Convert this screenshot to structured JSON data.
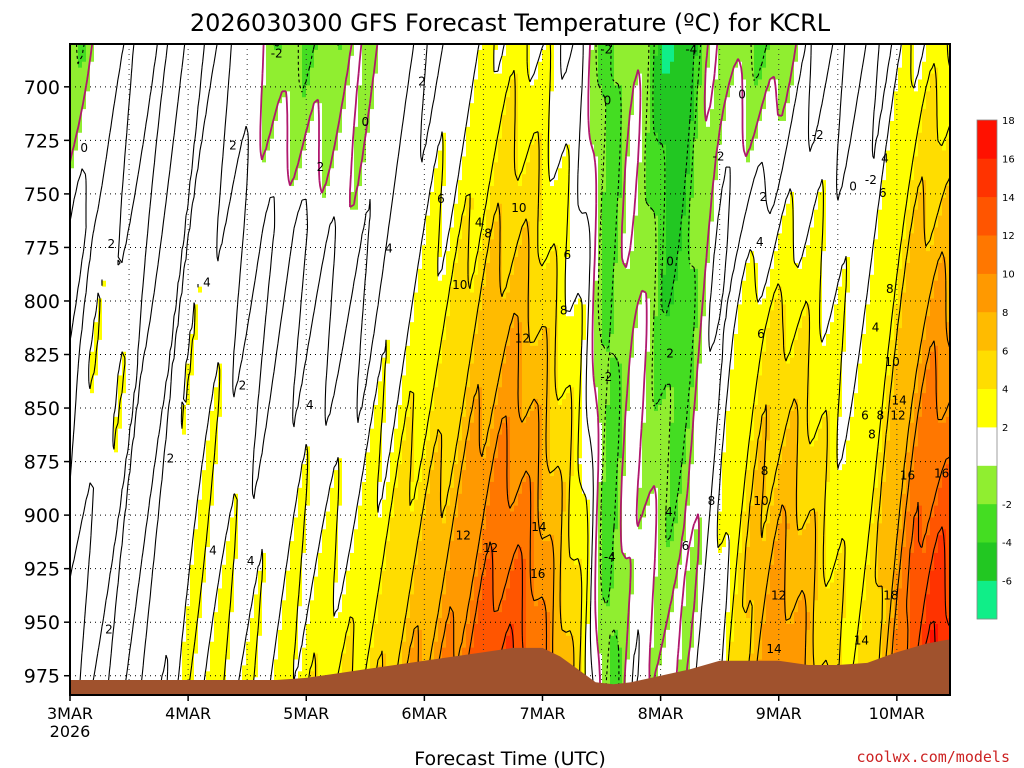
{
  "chart_data": {
    "type": "heatmap",
    "title": "2026030300 GFS Forecast Temperature (ºC) for KCRL",
    "xlabel": "Forecast Time (UTC)",
    "ylabel": "",
    "credit": "coolwx.com/models",
    "x_ticks": [
      "3MAR",
      "4MAR",
      "5MAR",
      "6MAR",
      "7MAR",
      "8MAR",
      "9MAR",
      "10MAR"
    ],
    "x_tick_values": [
      0,
      1,
      2,
      3,
      4,
      5,
      6,
      7
    ],
    "x_sublabel": "2026",
    "xlim": [
      0,
      7.45
    ],
    "y_ticks": [
      "700",
      "725",
      "750",
      "775",
      "800",
      "825",
      "850",
      "875",
      "900",
      "925",
      "950",
      "975"
    ],
    "y_tick_values": [
      700,
      725,
      750,
      775,
      800,
      825,
      850,
      875,
      900,
      925,
      950,
      975
    ],
    "ylim": [
      680,
      984
    ],
    "colorbar": {
      "colors": [
        "#10ee88",
        "#22c722",
        "#44dd22",
        "#90ee30",
        "#ffffff",
        "#ffff00",
        "#ffdd00",
        "#ffbb00",
        "#ff9900",
        "#ff7700",
        "#ff5500",
        "#ff3300",
        "#ff1100"
      ],
      "labels": [
        "-6",
        "-4",
        "-2",
        "2",
        "4",
        "6",
        "8",
        "10",
        "12",
        "14",
        "16",
        "18"
      ],
      "label_values": [
        -6,
        -4,
        -2,
        2,
        4,
        6,
        8,
        10,
        12,
        14,
        16,
        18
      ]
    },
    "time_days": [
      0,
      0.25,
      0.5,
      0.75,
      1,
      1.25,
      1.5,
      1.75,
      2,
      2.25,
      2.5,
      2.75,
      3,
      3.25,
      3.5,
      3.75,
      4,
      4.15,
      4.3,
      4.45,
      4.6,
      4.75,
      5,
      5.25,
      5.5,
      5.75,
      6,
      6.25,
      6.5,
      6.75,
      7,
      7.25,
      7.45
    ],
    "ground_pressure": [
      977,
      977,
      977,
      977,
      977,
      977,
      977,
      977,
      976,
      974,
      972,
      970,
      968,
      966,
      964,
      962,
      962,
      966,
      972,
      978,
      979,
      978,
      975,
      972,
      968,
      968,
      968,
      970,
      970,
      969,
      964,
      960,
      958
    ],
    "annotations": [
      {
        "text": "-2",
        "t": 1.75,
        "p": 684
      },
      {
        "text": "0",
        "t": 0.12,
        "p": 728
      },
      {
        "text": "2",
        "t": 1.38,
        "p": 727
      },
      {
        "text": "2",
        "t": 2.12,
        "p": 737
      },
      {
        "text": "2",
        "t": 2.98,
        "p": 697
      },
      {
        "text": "0",
        "t": 2.5,
        "p": 716
      },
      {
        "text": "2",
        "t": 0.35,
        "p": 773
      },
      {
        "text": "4",
        "t": 1.16,
        "p": 791
      },
      {
        "text": "4",
        "t": 2.7,
        "p": 775
      },
      {
        "text": "6",
        "t": 3.14,
        "p": 752
      },
      {
        "text": "4",
        "t": 3.46,
        "p": 763
      },
      {
        "text": "8",
        "t": 3.54,
        "p": 768
      },
      {
        "text": "10",
        "t": 3.8,
        "p": 756
      },
      {
        "text": "6",
        "t": 4.21,
        "p": 778
      },
      {
        "text": "10",
        "t": 3.3,
        "p": 792
      },
      {
        "text": "8",
        "t": 4.18,
        "p": 804
      },
      {
        "text": "12",
        "t": 3.83,
        "p": 817
      },
      {
        "text": "2",
        "t": 1.46,
        "p": 839
      },
      {
        "text": "4",
        "t": 2.03,
        "p": 848
      },
      {
        "text": "2",
        "t": 0.85,
        "p": 873
      },
      {
        "text": "4",
        "t": 1.21,
        "p": 916
      },
      {
        "text": "4",
        "t": 1.53,
        "p": 921
      },
      {
        "text": "2",
        "t": 0.33,
        "p": 953
      },
      {
        "text": "12",
        "t": 3.33,
        "p": 909
      },
      {
        "text": "12",
        "t": 3.56,
        "p": 915
      },
      {
        "text": "14",
        "t": 3.97,
        "p": 905
      },
      {
        "text": "16",
        "t": 3.96,
        "p": 927
      },
      {
        "text": "-2",
        "t": 4.54,
        "p": 682
      },
      {
        "text": "-4",
        "t": 5.26,
        "p": 682
      },
      {
        "text": "0",
        "t": 4.55,
        "p": 706
      },
      {
        "text": "0",
        "t": 5.69,
        "p": 703
      },
      {
        "text": "-2",
        "t": 5.49,
        "p": 732
      },
      {
        "text": "-2",
        "t": 6.33,
        "p": 722
      },
      {
        "text": "2",
        "t": 5.87,
        "p": 751
      },
      {
        "text": "0",
        "t": 6.63,
        "p": 746
      },
      {
        "text": "-2",
        "t": 6.78,
        "p": 743
      },
      {
        "text": "0",
        "t": 5.08,
        "p": 781
      },
      {
        "text": "4",
        "t": 5.84,
        "p": 772
      },
      {
        "text": "2",
        "t": 5.08,
        "p": 824
      },
      {
        "text": "6",
        "t": 5.85,
        "p": 815
      },
      {
        "text": "-2",
        "t": 4.54,
        "p": 835
      },
      {
        "text": "-4",
        "t": 4.57,
        "p": 919
      },
      {
        "text": "4",
        "t": 5.07,
        "p": 898
      },
      {
        "text": "6",
        "t": 5.21,
        "p": 914
      },
      {
        "text": "8",
        "t": 5.43,
        "p": 893
      },
      {
        "text": "8",
        "t": 5.88,
        "p": 879
      },
      {
        "text": "10",
        "t": 5.85,
        "p": 893
      },
      {
        "text": "12",
        "t": 6.0,
        "p": 937
      },
      {
        "text": "14",
        "t": 5.96,
        "p": 962
      },
      {
        "text": "4",
        "t": 6.9,
        "p": 733
      },
      {
        "text": "6",
        "t": 6.88,
        "p": 749
      },
      {
        "text": "4",
        "t": 6.82,
        "p": 812
      },
      {
        "text": "8",
        "t": 6.94,
        "p": 794
      },
      {
        "text": "10",
        "t": 6.96,
        "p": 828
      },
      {
        "text": "6",
        "t": 6.73,
        "p": 853
      },
      {
        "text": "8",
        "t": 6.86,
        "p": 853
      },
      {
        "text": "8",
        "t": 6.79,
        "p": 862
      },
      {
        "text": "12",
        "t": 7.01,
        "p": 853
      },
      {
        "text": "14",
        "t": 7.02,
        "p": 846
      },
      {
        "text": "16",
        "t": 7.09,
        "p": 881
      },
      {
        "text": "16",
        "t": 7.38,
        "p": 880
      },
      {
        "text": "18",
        "t": 6.95,
        "p": 937
      },
      {
        "text": "14",
        "t": 6.7,
        "p": 958
      }
    ]
  }
}
